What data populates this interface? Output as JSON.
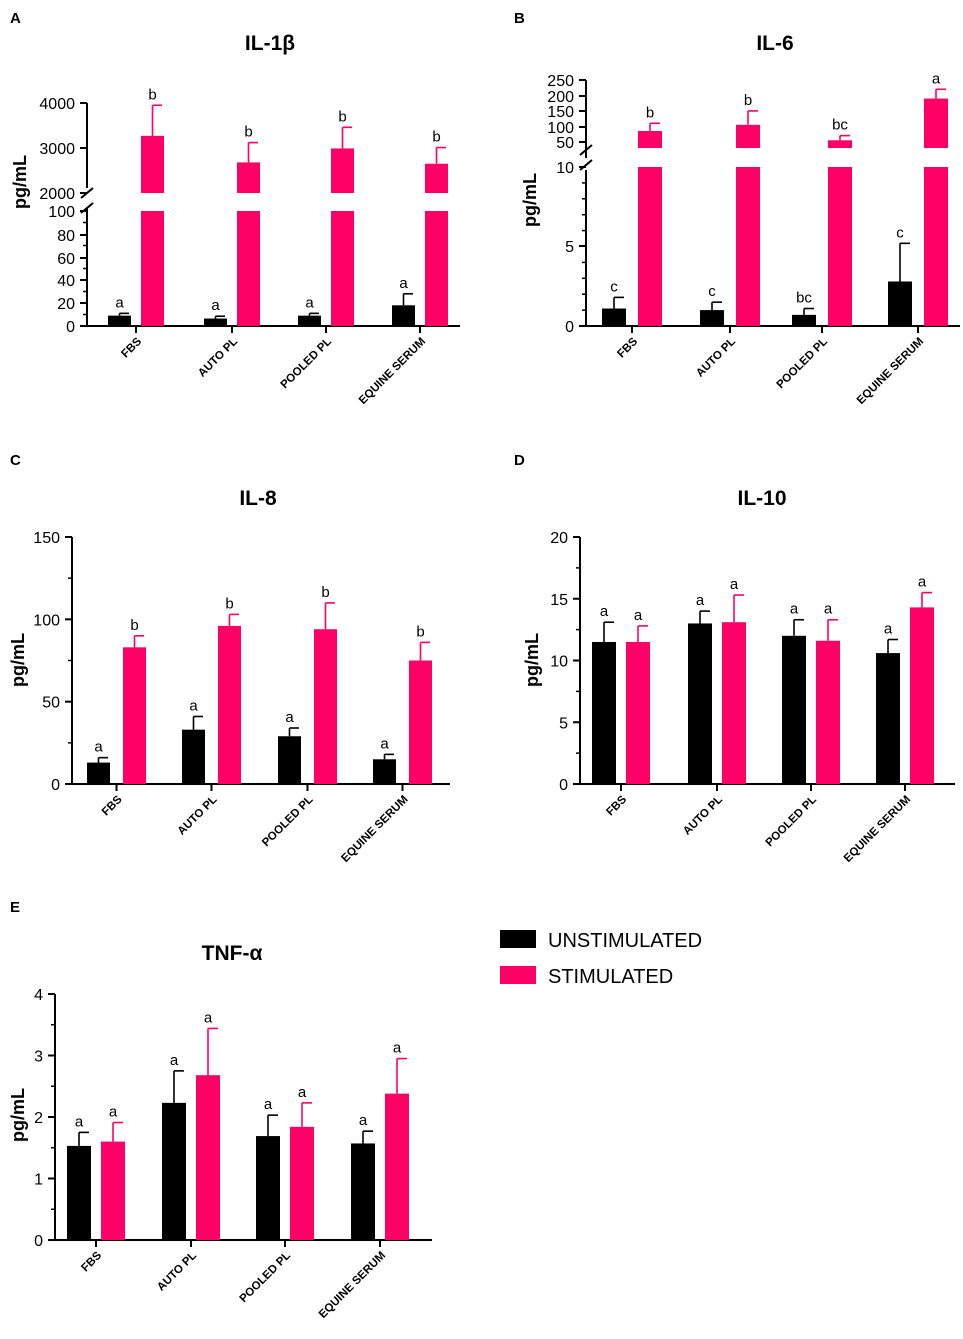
{
  "colors": {
    "unstimulated": "#000000",
    "stimulated": "#ff0066"
  },
  "legend": {
    "unstimulated": "UNSTIMULATED",
    "stimulated": "STIMULATED"
  },
  "chart_data": [
    {
      "panel": "A",
      "title": "IL-1β",
      "type": "bar",
      "ylabel": "pg/mL",
      "categories": [
        "FBS",
        "AUTO PL",
        "POOLED PL",
        "EQUINE SERUM"
      ],
      "series": [
        {
          "name": "UNSTIMULATED",
          "values": [
            9,
            6.5,
            9,
            18
          ],
          "errors": [
            2,
            2,
            2,
            10
          ],
          "letters": [
            "a",
            "a",
            "a",
            "a"
          ]
        },
        {
          "name": "STIMULATED",
          "values": [
            3270,
            2680,
            2990,
            2650
          ],
          "errors": [
            680,
            440,
            470,
            360
          ],
          "letters": [
            "b",
            "b",
            "b",
            "b"
          ]
        }
      ],
      "axis_segments": [
        {
          "range": [
            0,
            100
          ],
          "ticks": [
            "0",
            "20",
            "40",
            "60",
            "80",
            "100"
          ]
        },
        {
          "range": [
            2000,
            4000
          ],
          "ticks": [
            "2000",
            "3000",
            "4000"
          ]
        }
      ]
    },
    {
      "panel": "B",
      "title": "IL-6",
      "type": "bar",
      "ylabel": "pg/mL",
      "categories": [
        "FBS",
        "AUTO PL",
        "POOLED PL",
        "EQUINE SERUM"
      ],
      "series": [
        {
          "name": "UNSTIMULATED",
          "values": [
            1.1,
            1.0,
            0.7,
            2.8
          ],
          "errors": [
            0.7,
            0.5,
            0.4,
            2.4
          ],
          "letters": [
            "c",
            "c",
            "bc",
            "c"
          ]
        },
        {
          "name": "STIMULATED",
          "values": [
            85,
            105,
            55,
            190
          ],
          "errors": [
            25,
            45,
            15,
            30
          ],
          "letters": [
            "b",
            "b",
            "bc",
            "a"
          ]
        }
      ],
      "axis_segments": [
        {
          "range": [
            0,
            10
          ],
          "ticks": [
            "0",
            "5",
            "10"
          ]
        },
        {
          "range": [
            30,
            250
          ],
          "ticks": [
            "50",
            "100",
            "150",
            "200",
            "250"
          ]
        }
      ]
    },
    {
      "panel": "C",
      "title": "IL-8",
      "type": "bar",
      "ylabel": "pg/mL",
      "categories": [
        "FBS",
        "AUTO PL",
        "POOLED PL",
        "EQUINE SERUM"
      ],
      "ylim": [
        0,
        150
      ],
      "yticks": [
        "0",
        "50",
        "100",
        "150"
      ],
      "series": [
        {
          "name": "UNSTIMULATED",
          "values": [
            13,
            33,
            29,
            15
          ],
          "errors": [
            3,
            8,
            5,
            3
          ],
          "letters": [
            "a",
            "a",
            "a",
            "a"
          ]
        },
        {
          "name": "STIMULATED",
          "values": [
            83,
            96,
            94,
            75
          ],
          "errors": [
            7,
            7,
            16,
            11
          ],
          "letters": [
            "b",
            "b",
            "b",
            "b"
          ]
        }
      ]
    },
    {
      "panel": "D",
      "title": "IL-10",
      "type": "bar",
      "ylabel": "pg/mL",
      "categories": [
        "FBS",
        "AUTO PL",
        "POOLED PL",
        "EQUINE SERUM"
      ],
      "ylim": [
        0,
        20
      ],
      "yticks": [
        "0",
        "5",
        "10",
        "15",
        "20"
      ],
      "series": [
        {
          "name": "UNSTIMULATED",
          "values": [
            11.5,
            13.0,
            12.0,
            10.6
          ],
          "errors": [
            1.6,
            1.0,
            1.3,
            1.1
          ],
          "letters": [
            "a",
            "a",
            "a",
            "a"
          ]
        },
        {
          "name": "STIMULATED",
          "values": [
            11.5,
            13.1,
            11.6,
            14.3
          ],
          "errors": [
            1.3,
            2.2,
            1.7,
            1.2
          ],
          "letters": [
            "a",
            "a",
            "a",
            "a"
          ]
        }
      ]
    },
    {
      "panel": "E",
      "title": "TNF-α",
      "type": "bar",
      "ylabel": "pg/mL",
      "categories": [
        "FBS",
        "AUTO PL",
        "POOLED PL",
        "EQUINE SERUM"
      ],
      "ylim": [
        0,
        4
      ],
      "yticks": [
        "0",
        "1",
        "2",
        "3",
        "4"
      ],
      "series": [
        {
          "name": "UNSTIMULATED",
          "values": [
            1.53,
            2.23,
            1.69,
            1.57
          ],
          "errors": [
            0.22,
            0.52,
            0.34,
            0.2
          ],
          "letters": [
            "a",
            "a",
            "a",
            "a"
          ]
        },
        {
          "name": "STIMULATED",
          "values": [
            1.6,
            2.68,
            1.84,
            2.38
          ],
          "errors": [
            0.31,
            0.76,
            0.39,
            0.57
          ],
          "letters": [
            "a",
            "a",
            "a",
            "a"
          ]
        }
      ]
    }
  ]
}
